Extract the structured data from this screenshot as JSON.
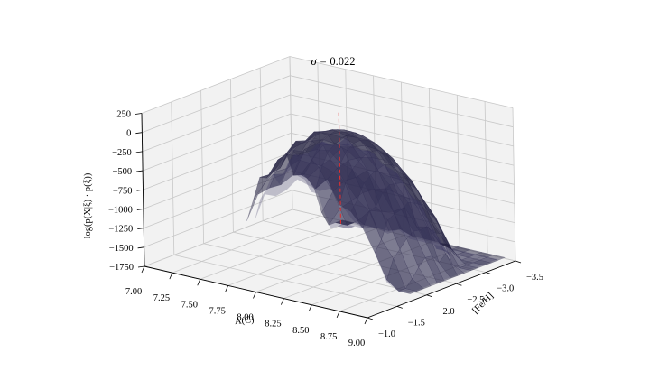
{
  "chart_data": {
    "type": "surface3d",
    "title_symbol": "σ = ",
    "title_value": "0.022",
    "xlabel": "A(C)",
    "ylabel": "[Fe/H]",
    "zlabel": "log(p(X|ξ) · p(ξ))",
    "xlim": [
      7.0,
      9.0
    ],
    "ylim": [
      -1.0,
      -3.5
    ],
    "zlim": [
      -1750,
      250
    ],
    "xticks": [
      "7.00",
      "7.25",
      "7.50",
      "7.75",
      "8.00",
      "8.25",
      "8.50",
      "8.75",
      "9.00"
    ],
    "yticks": [
      "−1.0",
      "−1.5",
      "−2.0",
      "−2.5",
      "−3.0",
      "−3.5"
    ],
    "zticks": [
      "250",
      "0",
      "−250",
      "−500",
      "−750",
      "−1000",
      "−1250",
      "−1500",
      "−1750"
    ],
    "grid": true,
    "surface_color": "#1c1a3a",
    "marker_line_color": "#e03030",
    "surface_peak": {
      "x": 8.05,
      "y": -2.35,
      "z": -30
    },
    "marker_x": 8.05,
    "marker_y": -2.35
  }
}
